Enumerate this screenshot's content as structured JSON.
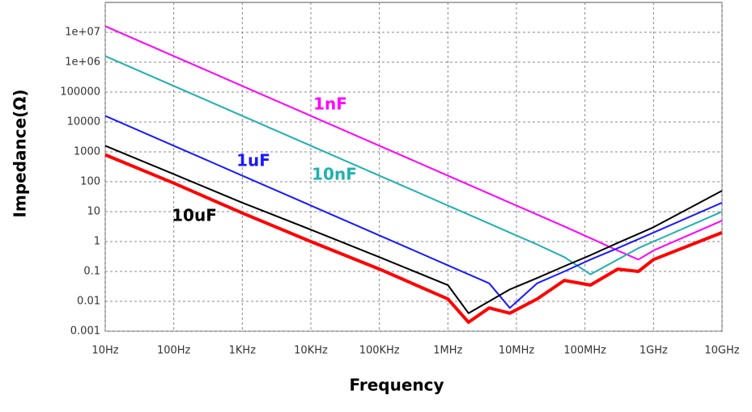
{
  "chart_data": {
    "type": "line",
    "xlabel": "Frequency",
    "ylabel": "Impedance(Ω)",
    "x": [
      10,
      100,
      1000,
      10000,
      100000,
      1000000,
      2000000,
      4000000,
      8000000,
      20000000,
      50000000,
      120000000,
      300000000,
      600000000,
      1000000000,
      10000000000
    ],
    "series": [
      {
        "name": "1nF",
        "color": "#ff00ff",
        "values": [
          16000000,
          1600000,
          160000,
          16000,
          1600,
          160,
          80,
          40,
          20,
          8,
          3.2,
          1.3,
          0.5,
          0.25,
          0.5,
          5
        ]
      },
      {
        "name": "10nF",
        "color": "#20b0b0",
        "values": [
          1600000,
          160000,
          16000,
          1600,
          160,
          16,
          8,
          4,
          2,
          0.8,
          0.3,
          0.08,
          0.25,
          0.6,
          1,
          10
        ]
      },
      {
        "name": "1uF",
        "color": "#1a1aff",
        "values": [
          16000,
          1600,
          160,
          16,
          1.6,
          0.16,
          0.08,
          0.04,
          0.006,
          0.04,
          0.1,
          0.25,
          0.6,
          1.2,
          2,
          20
        ]
      },
      {
        "name": "10uF",
        "color": "#000000",
        "values": [
          1600,
          180,
          20,
          2.5,
          0.3,
          0.035,
          0.004,
          0.01,
          0.025,
          0.06,
          0.15,
          0.35,
          0.9,
          1.8,
          3,
          50
        ]
      },
      {
        "color": "#ff0000",
        "values": [
          800,
          90,
          9,
          1,
          0.12,
          0.012,
          0.002,
          0.006,
          0.004,
          0.012,
          0.05,
          0.035,
          0.12,
          0.1,
          0.25,
          2
        ]
      }
    ],
    "log_x": true,
    "log_y": true,
    "grid": true,
    "xlim": [
      10,
      10000000000
    ],
    "ylim": [
      0.001,
      100000000
    ],
    "xticks": [
      {
        "value": 10,
        "label": "10Hz"
      },
      {
        "value": 100,
        "label": "100Hz"
      },
      {
        "value": 1000,
        "label": "1KHz"
      },
      {
        "value": 10000,
        "label": "10KHz"
      },
      {
        "value": 100000,
        "label": "100KHz"
      },
      {
        "value": 1000000,
        "label": "1MHz"
      },
      {
        "value": 10000000,
        "label": "10MHz"
      },
      {
        "value": 100000000,
        "label": "100MHz"
      },
      {
        "value": 1000000000,
        "label": "1GHz"
      },
      {
        "value": 10000000000,
        "label": "10GHz"
      }
    ],
    "yticks": [
      0.001,
      0.01,
      0.1,
      1,
      10,
      100,
      1000,
      10000,
      100000,
      {
        "value": 1000000,
        "label": "1e+06"
      },
      {
        "value": 10000000,
        "label": "1e+07"
      }
    ]
  }
}
